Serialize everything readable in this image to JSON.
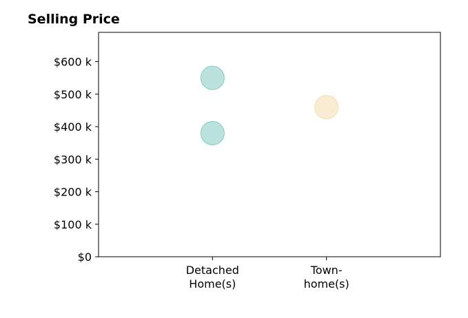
{
  "chart_data": {
    "type": "scatter",
    "title": "Selling Price",
    "xlabel": "",
    "ylabel": "",
    "categories": [
      [
        "Detached",
        "Home(s)"
      ],
      [
        "Town-",
        "home(s)"
      ]
    ],
    "y_ticks": [
      0,
      100000,
      200000,
      300000,
      400000,
      500000,
      600000
    ],
    "y_tick_labels": [
      "$0",
      "$100 k",
      "$200 k",
      "$300 k",
      "$400 k",
      "$500 k",
      "$600 k"
    ],
    "xlim": [
      -1,
      2
    ],
    "ylim": [
      0,
      690000
    ],
    "grid": false,
    "series": [
      {
        "category_index": 0,
        "color": "#8fcfc6",
        "points": [
          550000,
          380000
        ]
      },
      {
        "category_index": 1,
        "color": "#f6dfb4",
        "points": [
          460000
        ]
      }
    ],
    "marker_alpha": 0.6,
    "marker_edge_alpha": 0.3
  }
}
